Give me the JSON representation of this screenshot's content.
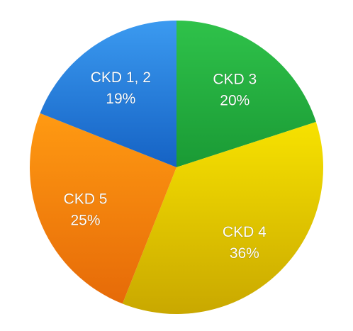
{
  "chart_data": {
    "type": "pie",
    "title": "",
    "start_angle_deg": 0,
    "direction": "clockwise",
    "slices": [
      {
        "label": "CKD 3",
        "value": 20,
        "value_text": "20%",
        "color": "#22aa3c",
        "color_light": "#2fc24a",
        "color_dark": "#1a9a35"
      },
      {
        "label": "CKD 4",
        "value": 36,
        "value_text": "36%",
        "color": "#e8c800",
        "color_light": "#f7e200",
        "color_dark": "#c9a800"
      },
      {
        "label": "CKD 5",
        "value": 25,
        "value_text": "25%",
        "color": "#f27c0c",
        "color_light": "#ff9a12",
        "color_dark": "#e66a08"
      },
      {
        "label": "CKD 1, 2",
        "value": 19,
        "value_text": "19%",
        "color": "#1b73d6",
        "color_light": "#3b9af0",
        "color_dark": "#1562c4"
      }
    ]
  }
}
